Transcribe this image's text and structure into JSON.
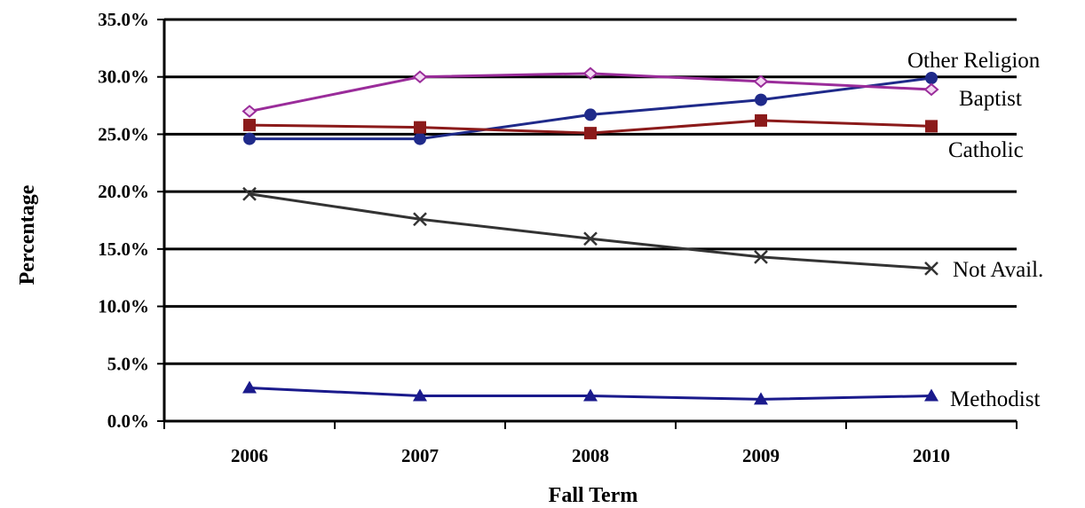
{
  "chart_data": {
    "type": "line",
    "xlabel": "Fall Term",
    "ylabel": "Percentage",
    "x": [
      "2006",
      "2007",
      "2008",
      "2009",
      "2010"
    ],
    "ylim": [
      0,
      35
    ],
    "y_ticks": [
      "0.0%",
      "5.0%",
      "10.0%",
      "15.0%",
      "20.0%",
      "25.0%",
      "30.0%",
      "35.0%"
    ],
    "grid": "horizontal",
    "series": [
      {
        "name": "Other Religion",
        "color": "#1f2a8a",
        "marker": "circle",
        "values": [
          24.6,
          24.6,
          26.7,
          28.0,
          29.9
        ]
      },
      {
        "name": "Baptist",
        "color": "#9a2c9a",
        "marker": "diamond",
        "values": [
          27.0,
          30.0,
          30.3,
          29.6,
          28.9
        ]
      },
      {
        "name": "Catholic",
        "color": "#8b1a1a",
        "marker": "square",
        "values": [
          25.8,
          25.6,
          25.1,
          26.2,
          25.7
        ]
      },
      {
        "name": "Not Avail.",
        "color": "#333333",
        "marker": "x",
        "values": [
          19.8,
          17.6,
          15.9,
          14.3,
          13.3
        ]
      },
      {
        "name": "Methodist",
        "color": "#1a1a8c",
        "marker": "triangle",
        "values": [
          2.9,
          2.2,
          2.2,
          1.9,
          2.2
        ]
      }
    ]
  }
}
